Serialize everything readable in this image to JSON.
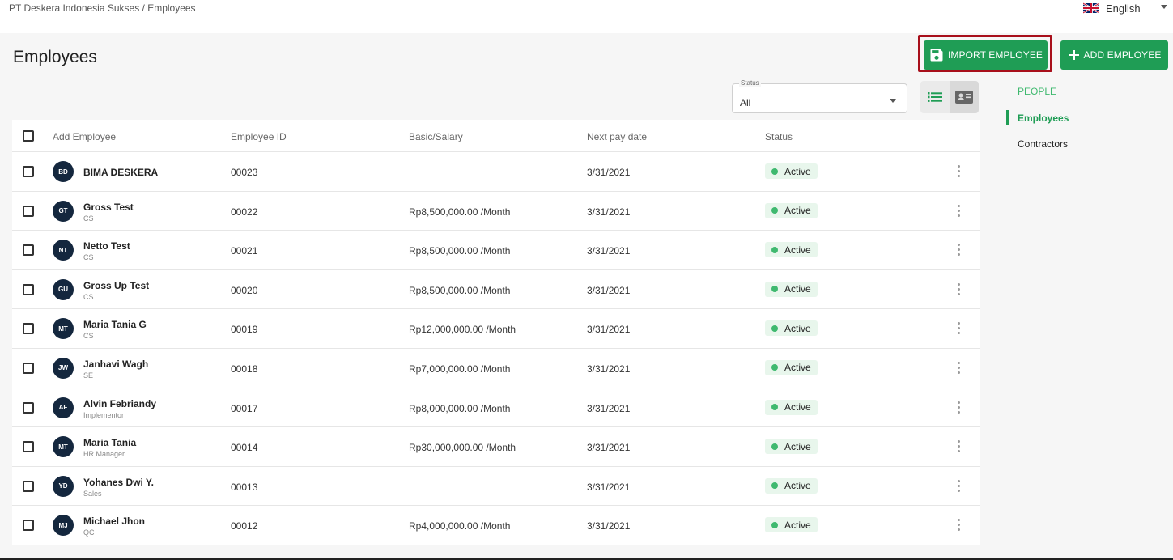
{
  "breadcrumb": "PT Deskera Indonesia Sukses / Employees",
  "language": {
    "label": "English",
    "icon": "uk-flag-icon"
  },
  "page_title": "Employees",
  "buttons": {
    "import": "IMPORT EMPLOYEE",
    "add": "ADD EMPLOYEE"
  },
  "filter": {
    "label": "Status",
    "value": "All"
  },
  "side_nav": {
    "heading": "PEOPLE",
    "items": [
      "Employees",
      "Contractors"
    ]
  },
  "table": {
    "headers": [
      "Add Employee",
      "Employee ID",
      "Basic/Salary",
      "Next pay date",
      "Status"
    ],
    "rows": [
      {
        "initials": "BD",
        "name": "BIMA DESKERA",
        "role": "",
        "id": "00023",
        "salary": "",
        "date": "3/31/2021",
        "status": "Active"
      },
      {
        "initials": "GT",
        "name": "Gross Test",
        "role": "CS",
        "id": "00022",
        "salary": "Rp8,500,000.00 /Month",
        "date": "3/31/2021",
        "status": "Active"
      },
      {
        "initials": "NT",
        "name": "Netto Test",
        "role": "CS",
        "id": "00021",
        "salary": "Rp8,500,000.00 /Month",
        "date": "3/31/2021",
        "status": "Active"
      },
      {
        "initials": "GU",
        "name": "Gross Up Test",
        "role": "CS",
        "id": "00020",
        "salary": "Rp8,500,000.00 /Month",
        "date": "3/31/2021",
        "status": "Active"
      },
      {
        "initials": "MT",
        "name": "Maria Tania G",
        "role": "CS",
        "id": "00019",
        "salary": "Rp12,000,000.00 /Month",
        "date": "3/31/2021",
        "status": "Active"
      },
      {
        "initials": "JW",
        "name": "Janhavi Wagh",
        "role": "SE",
        "id": "00018",
        "salary": "Rp7,000,000.00 /Month",
        "date": "3/31/2021",
        "status": "Active"
      },
      {
        "initials": "AF",
        "name": "Alvin Febriandy",
        "role": "Implementor",
        "id": "00017",
        "salary": "Rp8,000,000.00 /Month",
        "date": "3/31/2021",
        "status": "Active"
      },
      {
        "initials": "MT",
        "name": "Maria Tania",
        "role": "HR Manager",
        "id": "00014",
        "salary": "Rp30,000,000.00 /Month",
        "date": "3/31/2021",
        "status": "Active"
      },
      {
        "initials": "YD",
        "name": "Yohanes Dwi Y.",
        "role": "Sales",
        "id": "00013",
        "salary": "",
        "date": "3/31/2021",
        "status": "Active"
      },
      {
        "initials": "MJ",
        "name": "Michael Jhon",
        "role": "QC",
        "id": "00012",
        "salary": "Rp4,000,000.00 /Month",
        "date": "3/31/2021",
        "status": "Active"
      }
    ]
  },
  "colors": {
    "primary": "#1f9d55",
    "highlight_border": "#a80f1b",
    "avatar_bg": "#14273e",
    "active_badge_bg": "#e8f6ec"
  }
}
